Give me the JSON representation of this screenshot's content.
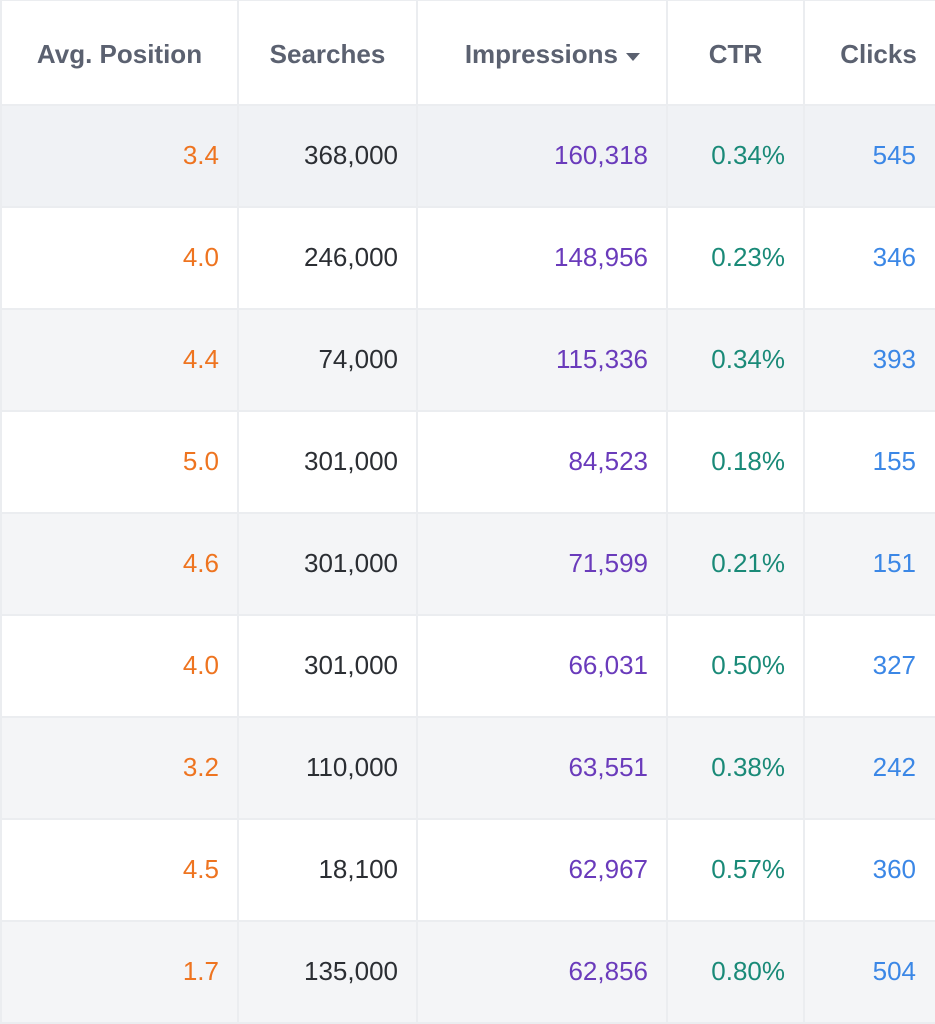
{
  "columns": {
    "avg_position": "Avg. Position",
    "searches": "Searches",
    "impressions": "Impressions",
    "ctr": "CTR",
    "clicks": "Clicks"
  },
  "sort": {
    "column": "impressions",
    "direction": "descending",
    "icon": "caret-down-icon"
  },
  "colors": {
    "avg_position": "#ee7420",
    "searches": "#2b2e33",
    "impressions": "#6a3bbb",
    "ctr": "#1a8a78",
    "clicks": "#3b87e6",
    "header_text": "#5b6170",
    "zebra_row": "#f4f5f7",
    "grid_line": "#ebedf0"
  },
  "rows": [
    {
      "avg_position": "3.4",
      "searches": "368,000",
      "impressions": "160,318",
      "ctr": "0.34%",
      "clicks": "545"
    },
    {
      "avg_position": "4.0",
      "searches": "246,000",
      "impressions": "148,956",
      "ctr": "0.23%",
      "clicks": "346"
    },
    {
      "avg_position": "4.4",
      "searches": "74,000",
      "impressions": "115,336",
      "ctr": "0.34%",
      "clicks": "393"
    },
    {
      "avg_position": "5.0",
      "searches": "301,000",
      "impressions": "84,523",
      "ctr": "0.18%",
      "clicks": "155"
    },
    {
      "avg_position": "4.6",
      "searches": "301,000",
      "impressions": "71,599",
      "ctr": "0.21%",
      "clicks": "151"
    },
    {
      "avg_position": "4.0",
      "searches": "301,000",
      "impressions": "66,031",
      "ctr": "0.50%",
      "clicks": "327"
    },
    {
      "avg_position": "3.2",
      "searches": "110,000",
      "impressions": "63,551",
      "ctr": "0.38%",
      "clicks": "242"
    },
    {
      "avg_position": "4.5",
      "searches": "18,100",
      "impressions": "62,967",
      "ctr": "0.57%",
      "clicks": "360"
    },
    {
      "avg_position": "1.7",
      "searches": "135,000",
      "impressions": "62,856",
      "ctr": "0.80%",
      "clicks": "504"
    }
  ]
}
